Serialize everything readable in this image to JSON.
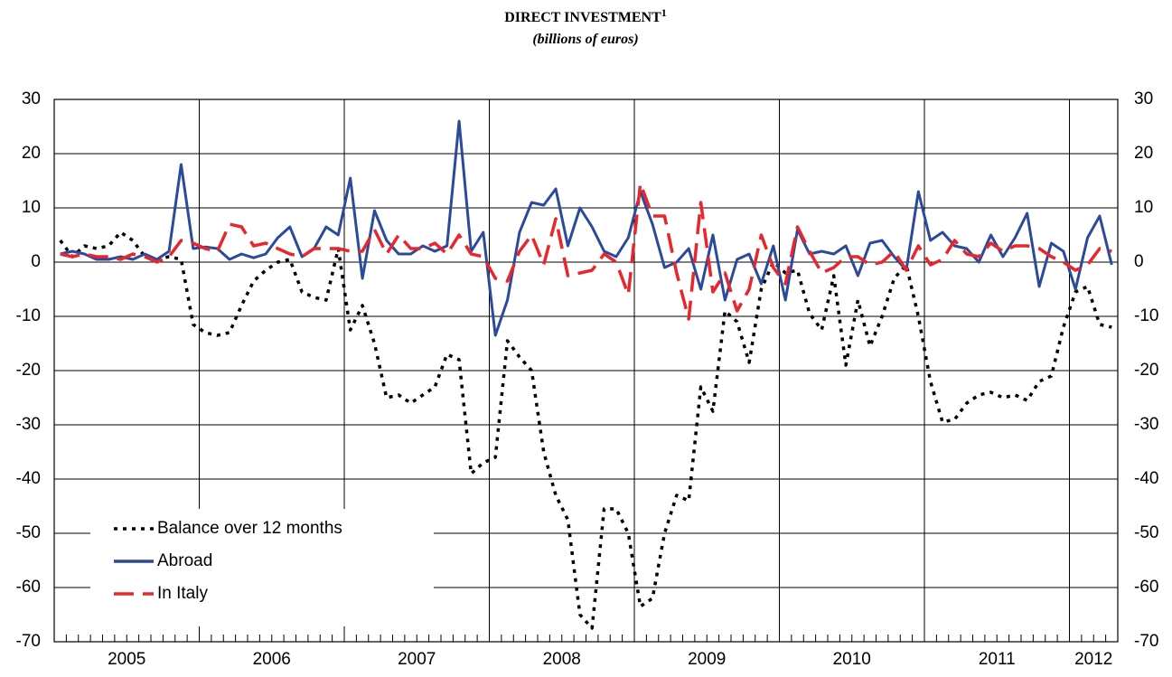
{
  "chart_data": {
    "type": "line",
    "title": "DIRECT INVESTMENT",
    "title_note": "1",
    "subtitle": "(billions of euros)",
    "categories": [
      null,
      null,
      null,
      null,
      null,
      null,
      "2005",
      null,
      null,
      null,
      null,
      null,
      null,
      null,
      null,
      null,
      null,
      null,
      "2006",
      null,
      null,
      null,
      null,
      null,
      null,
      null,
      null,
      null,
      null,
      null,
      "2007",
      null,
      null,
      null,
      null,
      null,
      null,
      null,
      null,
      null,
      null,
      null,
      "2008",
      null,
      null,
      null,
      null,
      null,
      null,
      null,
      null,
      null,
      null,
      null,
      "2009",
      null,
      null,
      null,
      null,
      null,
      null,
      null,
      null,
      null,
      null,
      null,
      "2010",
      null,
      null,
      null,
      null,
      null,
      null,
      null,
      null,
      null,
      null,
      null,
      "2011",
      null,
      null,
      null,
      null,
      null,
      null,
      null,
      "2012",
      null
    ],
    "series": [
      {
        "name": "Balance over 12 months",
        "color": "#000000",
        "style": "dotted",
        "values": [
          4,
          1,
          3,
          2.5,
          3,
          5.5,
          4,
          1,
          0.5,
          1,
          0.5,
          -11.5,
          -13,
          -13.5,
          -13,
          -8,
          -3.5,
          -1.5,
          0,
          0.5,
          -5.5,
          -6.5,
          -7,
          2.5,
          -12.5,
          -8,
          -15,
          -25,
          -24.5,
          -26,
          -24.5,
          -23,
          -17,
          -18,
          -39,
          -37,
          -36,
          -14.5,
          -17.5,
          -20,
          -35,
          -43,
          -47.5,
          -65,
          -67.5,
          -45.5,
          -45.5,
          -50,
          -63.5,
          -62,
          -50,
          -43,
          -44,
          -23,
          -27.5,
          -9,
          -11,
          -18.5,
          -5,
          0,
          -2,
          -1.5,
          -9.5,
          -12.5,
          -2.5,
          -19,
          -7,
          -15.5,
          -10,
          -3,
          -0.5,
          -10,
          -22,
          -29.5,
          -29,
          -26,
          -24.5,
          -24,
          -25,
          -24.5,
          -25.5,
          -22,
          -21,
          -12,
          -5.5,
          -4.5,
          -11.5,
          -12
        ]
      },
      {
        "name": "Abroad",
        "color": "#2b4a9b",
        "style": "solid",
        "values": [
          1.5,
          2,
          1.5,
          0.5,
          0.5,
          1,
          0.5,
          1.5,
          0.5,
          2,
          18,
          2.5,
          2.8,
          2.5,
          0.5,
          1.5,
          0.8,
          1.5,
          4.5,
          6.5,
          1,
          2.5,
          6.5,
          5,
          15.5,
          -3,
          9.5,
          4,
          1.5,
          1.5,
          3,
          2,
          3,
          26,
          2,
          5.5,
          -13.5,
          -7,
          5.5,
          11,
          10.5,
          13.5,
          3,
          10,
          6.5,
          2,
          1,
          4.5,
          13,
          7,
          -1,
          0,
          2.5,
          -5,
          5,
          -7,
          0.5,
          1.5,
          -4,
          3,
          -7,
          6,
          1.5,
          2,
          1.5,
          3,
          -2.5,
          3.5,
          4,
          1,
          -1.5,
          13,
          4,
          5.5,
          3,
          2.5,
          0,
          5,
          1,
          4.5,
          9,
          -4.5,
          3.5,
          2,
          -5,
          4.5,
          8.5,
          -0.5
        ]
      },
      {
        "name": "In Italy",
        "color": "#e8262b",
        "style": "dashed",
        "values": [
          1.5,
          1,
          1.5,
          1,
          1,
          0.5,
          1.5,
          1,
          0,
          1,
          4,
          3.5,
          2.5,
          2,
          7,
          6.5,
          3,
          3.5,
          2.5,
          1.5,
          1,
          2.5,
          2.5,
          2.5,
          2,
          2,
          6,
          1.5,
          5,
          2.5,
          2.5,
          3.5,
          1.5,
          5,
          1.5,
          1,
          -3,
          -3.5,
          2,
          5,
          -0.5,
          8,
          -2.5,
          -2,
          -1.5,
          1.5,
          0,
          -6,
          14.5,
          8.5,
          8.5,
          -2,
          -10.5,
          11,
          -5.5,
          -2,
          -9,
          -5,
          5,
          -1,
          -4,
          6.5,
          2,
          -2,
          -1,
          1,
          1,
          -0.5,
          0,
          2,
          -1.5,
          3,
          -0.5,
          0.5,
          4,
          1.5,
          1,
          3.5,
          2,
          3,
          3,
          2.5,
          1,
          0,
          -1.5,
          -0.5,
          2.5,
          2
        ]
      }
    ],
    "ylim": [
      -70,
      30
    ],
    "yticks": [
      -70,
      -60,
      -50,
      -40,
      -30,
      -20,
      -10,
      0,
      10,
      20,
      30
    ],
    "y2lim": [
      -70,
      30
    ],
    "y2ticks": [
      -70,
      -60,
      -50,
      -40,
      -30,
      -20,
      -10,
      0,
      10,
      20,
      30
    ],
    "grid": true,
    "legend": "lower left"
  }
}
